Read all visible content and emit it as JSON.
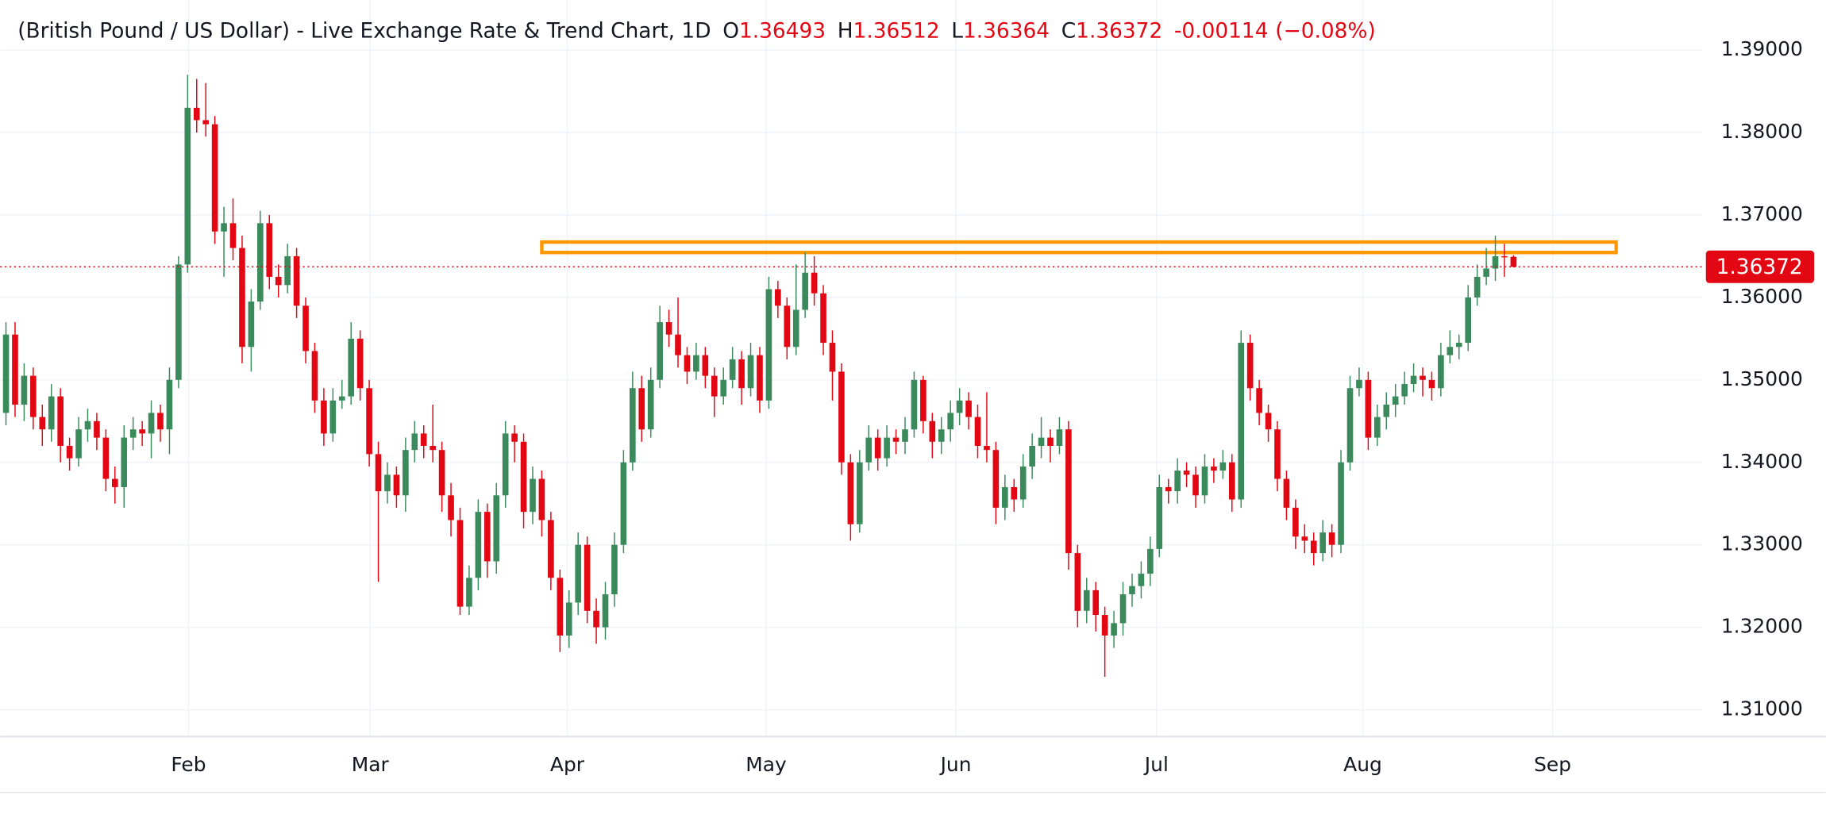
{
  "chart_data": {
    "type": "candlestick",
    "title": "(British Pound / US Dollar) - Live Exchange Rate & Trend Chart, 1D",
    "legend_keys": [
      "O",
      "H",
      "L",
      "C"
    ],
    "change": -0.00114,
    "change_percent_label": "(−0.08%)",
    "up_color": "#3a8a5c",
    "down_color": "#e30613",
    "grid": true,
    "ylim": [
      1.30675,
      1.39607
    ],
    "yticks": [
      {
        "value": 1.31,
        "label": "1.31000"
      },
      {
        "value": 1.32,
        "label": "1.32000"
      },
      {
        "value": 1.33,
        "label": "1.33000"
      },
      {
        "value": 1.34,
        "label": "1.34000"
      },
      {
        "value": 1.35,
        "label": "1.35000"
      },
      {
        "value": 1.36,
        "label": "1.36000"
      },
      {
        "value": 1.37,
        "label": "1.37000"
      },
      {
        "value": 1.38,
        "label": "1.38000"
      },
      {
        "value": 1.39,
        "label": "1.39000"
      }
    ],
    "xlim": [
      -0.641,
      186.8
    ],
    "xticks": [
      {
        "value": 20.1,
        "label": "Feb"
      },
      {
        "value": 40.1,
        "label": "Mar"
      },
      {
        "value": 61.8,
        "label": "Apr"
      },
      {
        "value": 83.7,
        "label": "May"
      },
      {
        "value": 104.6,
        "label": "Jun"
      },
      {
        "value": 126.7,
        "label": "Jul"
      },
      {
        "value": 149.4,
        "label": "Aug"
      },
      {
        "value": 170.3,
        "label": "Sep"
      }
    ],
    "resistance_zone": {
      "xrange": [
        59,
        177.3
      ],
      "yrange": [
        1.36545,
        1.36672
      ],
      "color": "#ff9800"
    },
    "ohlc": [
      [
        1.346,
        1.357,
        1.3445,
        1.3555
      ],
      [
        1.3555,
        1.357,
        1.3455,
        1.347
      ],
      [
        1.347,
        1.352,
        1.345,
        1.3505
      ],
      [
        1.3505,
        1.3515,
        1.344,
        1.3455
      ],
      [
        1.3455,
        1.347,
        1.342,
        1.344
      ],
      [
        1.344,
        1.3495,
        1.3425,
        1.348
      ],
      [
        1.348,
        1.349,
        1.34,
        1.342
      ],
      [
        1.342,
        1.343,
        1.339,
        1.3405
      ],
      [
        1.3405,
        1.3455,
        1.3395,
        1.344
      ],
      [
        1.344,
        1.3465,
        1.3425,
        1.345
      ],
      [
        1.345,
        1.346,
        1.3415,
        1.343
      ],
      [
        1.343,
        1.344,
        1.3365,
        1.338
      ],
      [
        1.338,
        1.3395,
        1.335,
        1.337
      ],
      [
        1.337,
        1.3445,
        1.3345,
        1.343
      ],
      [
        1.343,
        1.3455,
        1.3415,
        1.344
      ],
      [
        1.344,
        1.345,
        1.342,
        1.3435
      ],
      [
        1.3435,
        1.3475,
        1.3405,
        1.346
      ],
      [
        1.346,
        1.347,
        1.3425,
        1.344
      ],
      [
        1.344,
        1.3515,
        1.341,
        1.35
      ],
      [
        1.35,
        1.365,
        1.349,
        1.364
      ],
      [
        1.364,
        1.387,
        1.363,
        1.383
      ],
      [
        1.383,
        1.3865,
        1.38,
        1.3815
      ],
      [
        1.3815,
        1.386,
        1.3795,
        1.381
      ],
      [
        1.381,
        1.382,
        1.3665,
        1.368
      ],
      [
        1.368,
        1.371,
        1.3625,
        1.369
      ],
      [
        1.369,
        1.372,
        1.3645,
        1.366
      ],
      [
        1.366,
        1.3675,
        1.352,
        1.354
      ],
      [
        1.354,
        1.361,
        1.351,
        1.3595
      ],
      [
        1.3595,
        1.3705,
        1.3585,
        1.369
      ],
      [
        1.369,
        1.37,
        1.361,
        1.3625
      ],
      [
        1.3625,
        1.364,
        1.36,
        1.3615
      ],
      [
        1.3615,
        1.3665,
        1.3605,
        1.365
      ],
      [
        1.365,
        1.366,
        1.3575,
        1.359
      ],
      [
        1.359,
        1.36,
        1.352,
        1.3535
      ],
      [
        1.3535,
        1.3545,
        1.346,
        1.3475
      ],
      [
        1.3475,
        1.349,
        1.342,
        1.3435
      ],
      [
        1.3435,
        1.349,
        1.3425,
        1.3475
      ],
      [
        1.3475,
        1.35,
        1.3465,
        1.348
      ],
      [
        1.348,
        1.357,
        1.347,
        1.355
      ],
      [
        1.355,
        1.356,
        1.3475,
        1.349
      ],
      [
        1.349,
        1.35,
        1.3395,
        1.341
      ],
      [
        1.341,
        1.3425,
        1.3255,
        1.3365
      ],
      [
        1.3365,
        1.34,
        1.335,
        1.3385
      ],
      [
        1.3385,
        1.3395,
        1.3345,
        1.336
      ],
      [
        1.336,
        1.343,
        1.334,
        1.3415
      ],
      [
        1.3415,
        1.345,
        1.34,
        1.3435
      ],
      [
        1.3435,
        1.3445,
        1.3405,
        1.342
      ],
      [
        1.342,
        1.347,
        1.34,
        1.3415
      ],
      [
        1.3415,
        1.3425,
        1.334,
        1.336
      ],
      [
        1.336,
        1.3375,
        1.331,
        1.333
      ],
      [
        1.333,
        1.3345,
        1.3215,
        1.3225
      ],
      [
        1.3225,
        1.3275,
        1.3215,
        1.326
      ],
      [
        1.326,
        1.3355,
        1.3245,
        1.334
      ],
      [
        1.334,
        1.335,
        1.326,
        1.328
      ],
      [
        1.328,
        1.3375,
        1.3265,
        1.336
      ],
      [
        1.336,
        1.345,
        1.3345,
        1.3435
      ],
      [
        1.3435,
        1.3445,
        1.34,
        1.3425
      ],
      [
        1.3425,
        1.3435,
        1.332,
        1.334
      ],
      [
        1.334,
        1.3395,
        1.3325,
        1.338
      ],
      [
        1.338,
        1.339,
        1.331,
        1.333
      ],
      [
        1.333,
        1.334,
        1.3245,
        1.326
      ],
      [
        1.326,
        1.327,
        1.317,
        1.319
      ],
      [
        1.319,
        1.3245,
        1.3175,
        1.323
      ],
      [
        1.323,
        1.3315,
        1.3215,
        1.33
      ],
      [
        1.33,
        1.331,
        1.3205,
        1.322
      ],
      [
        1.322,
        1.3235,
        1.318,
        1.32
      ],
      [
        1.32,
        1.3255,
        1.3185,
        1.324
      ],
      [
        1.324,
        1.3315,
        1.3225,
        1.33
      ],
      [
        1.33,
        1.3415,
        1.329,
        1.34
      ],
      [
        1.34,
        1.351,
        1.339,
        1.349
      ],
      [
        1.349,
        1.3505,
        1.3425,
        1.344
      ],
      [
        1.344,
        1.3515,
        1.343,
        1.35
      ],
      [
        1.35,
        1.359,
        1.349,
        1.357
      ],
      [
        1.357,
        1.3585,
        1.354,
        1.3555
      ],
      [
        1.3555,
        1.36,
        1.3515,
        1.353
      ],
      [
        1.353,
        1.354,
        1.3495,
        1.351
      ],
      [
        1.351,
        1.3545,
        1.35,
        1.353
      ],
      [
        1.353,
        1.354,
        1.349,
        1.3505
      ],
      [
        1.3505,
        1.3515,
        1.3455,
        1.348
      ],
      [
        1.348,
        1.3515,
        1.347,
        1.35
      ],
      [
        1.35,
        1.354,
        1.349,
        1.3525
      ],
      [
        1.3525,
        1.3535,
        1.347,
        1.349
      ],
      [
        1.349,
        1.3545,
        1.348,
        1.353
      ],
      [
        1.353,
        1.354,
        1.346,
        1.3475
      ],
      [
        1.3475,
        1.3625,
        1.3465,
        1.361
      ],
      [
        1.361,
        1.362,
        1.3575,
        1.359
      ],
      [
        1.359,
        1.36,
        1.3525,
        1.354
      ],
      [
        1.354,
        1.364,
        1.353,
        1.3585
      ],
      [
        1.3585,
        1.3655,
        1.3575,
        1.363
      ],
      [
        1.363,
        1.365,
        1.359,
        1.3605
      ],
      [
        1.3605,
        1.3615,
        1.353,
        1.3545
      ],
      [
        1.3545,
        1.356,
        1.3475,
        1.351
      ],
      [
        1.351,
        1.352,
        1.3385,
        1.34
      ],
      [
        1.34,
        1.341,
        1.3305,
        1.3325
      ],
      [
        1.3325,
        1.3415,
        1.3315,
        1.34
      ],
      [
        1.34,
        1.3445,
        1.339,
        1.343
      ],
      [
        1.343,
        1.344,
        1.339,
        1.3405
      ],
      [
        1.3405,
        1.3445,
        1.3395,
        1.343
      ],
      [
        1.343,
        1.344,
        1.341,
        1.3425
      ],
      [
        1.3425,
        1.3455,
        1.341,
        1.344
      ],
      [
        1.344,
        1.351,
        1.343,
        1.35
      ],
      [
        1.35,
        1.3505,
        1.3435,
        1.345
      ],
      [
        1.345,
        1.346,
        1.3405,
        1.3425
      ],
      [
        1.3425,
        1.3455,
        1.341,
        1.344
      ],
      [
        1.344,
        1.3475,
        1.3425,
        1.346
      ],
      [
        1.346,
        1.349,
        1.3445,
        1.3475
      ],
      [
        1.3475,
        1.3485,
        1.344,
        1.3455
      ],
      [
        1.3455,
        1.347,
        1.3405,
        1.342
      ],
      [
        1.342,
        1.3485,
        1.34,
        1.3415
      ],
      [
        1.3415,
        1.3425,
        1.3325,
        1.3345
      ],
      [
        1.3345,
        1.3385,
        1.333,
        1.337
      ],
      [
        1.337,
        1.338,
        1.334,
        1.3355
      ],
      [
        1.3355,
        1.341,
        1.3345,
        1.3395
      ],
      [
        1.3395,
        1.3435,
        1.338,
        1.342
      ],
      [
        1.342,
        1.3455,
        1.3405,
        1.343
      ],
      [
        1.343,
        1.344,
        1.34,
        1.342
      ],
      [
        1.342,
        1.3455,
        1.341,
        1.344
      ],
      [
        1.344,
        1.345,
        1.327,
        1.329
      ],
      [
        1.329,
        1.33,
        1.32,
        1.322
      ],
      [
        1.322,
        1.326,
        1.3205,
        1.3245
      ],
      [
        1.3245,
        1.3255,
        1.3195,
        1.3215
      ],
      [
        1.3215,
        1.3225,
        1.314,
        1.319
      ],
      [
        1.319,
        1.322,
        1.3175,
        1.3205
      ],
      [
        1.3205,
        1.3255,
        1.319,
        1.324
      ],
      [
        1.324,
        1.3265,
        1.3225,
        1.325
      ],
      [
        1.325,
        1.328,
        1.3235,
        1.3265
      ],
      [
        1.3265,
        1.331,
        1.325,
        1.3295
      ],
      [
        1.3295,
        1.3385,
        1.3285,
        1.337
      ],
      [
        1.337,
        1.338,
        1.335,
        1.3365
      ],
      [
        1.3365,
        1.3405,
        1.335,
        1.339
      ],
      [
        1.339,
        1.34,
        1.337,
        1.3385
      ],
      [
        1.3385,
        1.3395,
        1.3345,
        1.336
      ],
      [
        1.336,
        1.341,
        1.335,
        1.3395
      ],
      [
        1.3395,
        1.3405,
        1.3375,
        1.339
      ],
      [
        1.339,
        1.3415,
        1.338,
        1.34
      ],
      [
        1.34,
        1.341,
        1.334,
        1.3355
      ],
      [
        1.3355,
        1.356,
        1.3345,
        1.3545
      ],
      [
        1.3545,
        1.3555,
        1.3475,
        1.349
      ],
      [
        1.349,
        1.35,
        1.3445,
        1.346
      ],
      [
        1.346,
        1.347,
        1.3425,
        1.344
      ],
      [
        1.344,
        1.345,
        1.3365,
        1.338
      ],
      [
        1.338,
        1.339,
        1.333,
        1.3345
      ],
      [
        1.3345,
        1.3355,
        1.3295,
        1.331
      ],
      [
        1.331,
        1.3325,
        1.329,
        1.3305
      ],
      [
        1.3305,
        1.3315,
        1.3275,
        1.329
      ],
      [
        1.329,
        1.333,
        1.328,
        1.3315
      ],
      [
        1.3315,
        1.3325,
        1.3285,
        1.33
      ],
      [
        1.33,
        1.3415,
        1.329,
        1.34
      ],
      [
        1.34,
        1.3505,
        1.339,
        1.349
      ],
      [
        1.349,
        1.3515,
        1.348,
        1.35
      ],
      [
        1.35,
        1.351,
        1.3415,
        1.343
      ],
      [
        1.343,
        1.347,
        1.342,
        1.3455
      ],
      [
        1.3455,
        1.3485,
        1.344,
        1.347
      ],
      [
        1.347,
        1.3495,
        1.3455,
        1.348
      ],
      [
        1.348,
        1.351,
        1.347,
        1.3495
      ],
      [
        1.3495,
        1.352,
        1.3485,
        1.3505
      ],
      [
        1.3505,
        1.3515,
        1.348,
        1.35
      ],
      [
        1.35,
        1.351,
        1.3475,
        1.349
      ],
      [
        1.349,
        1.3545,
        1.348,
        1.353
      ],
      [
        1.353,
        1.356,
        1.352,
        1.354
      ],
      [
        1.354,
        1.3555,
        1.3525,
        1.3545
      ],
      [
        1.3545,
        1.3615,
        1.3535,
        1.36
      ],
      [
        1.36,
        1.364,
        1.359,
        1.3625
      ],
      [
        1.3625,
        1.366,
        1.3615,
        1.3635
      ],
      [
        1.3635,
        1.3675,
        1.362,
        1.365
      ],
      [
        1.365,
        1.3665,
        1.3625,
        1.3649
      ],
      [
        1.36493,
        1.36512,
        1.36364,
        1.36372
      ]
    ]
  }
}
